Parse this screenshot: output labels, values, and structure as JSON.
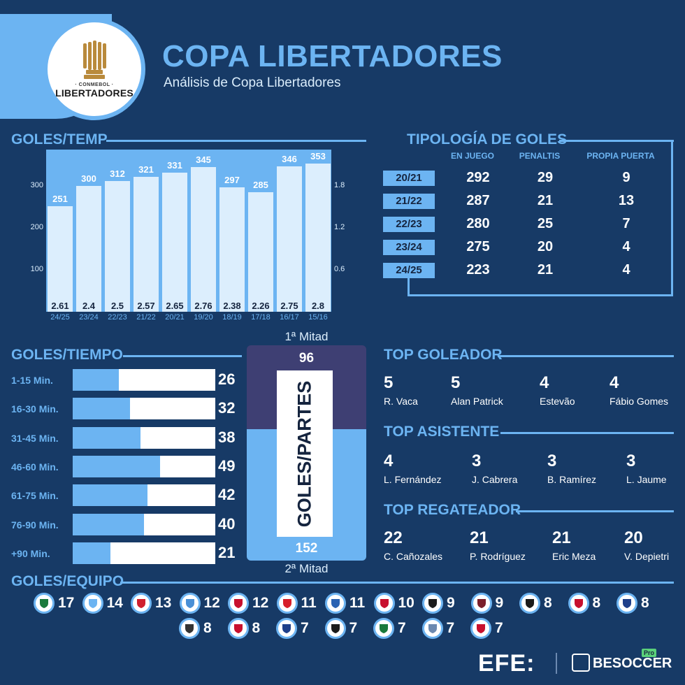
{
  "header": {
    "logo_small": "· CONMEBOL ·",
    "logo_big": "LIBERTADORES",
    "title": "COPA LIBERTADORES",
    "subtitle": "Análisis de Copa Libertadores"
  },
  "sections": {
    "goles_temp": "GOLES/TEMP",
    "tipologia": "TIPOLOGÍA DE GOLES",
    "goles_tiempo": "GOLES/TIEMPO",
    "top_goleador": "TOP GOLEADOR",
    "top_asistente": "TOP ASISTENTE",
    "top_regateador": "TOP REGATEADOR",
    "goles_equipo": "GOLES/EQUIPO"
  },
  "chart_data": {
    "type": "bar",
    "categories": [
      "24/25",
      "23/24",
      "22/23",
      "21/22",
      "20/21",
      "19/20",
      "18/19",
      "17/18",
      "16/17",
      "15/16"
    ],
    "series": [
      {
        "values": [
          251,
          300,
          312,
          321,
          331,
          345,
          297,
          285,
          346,
          353
        ]
      },
      {
        "values": [
          2.61,
          2.4,
          2.5,
          2.57,
          2.65,
          2.76,
          2.38,
          2.26,
          2.75,
          2.8
        ]
      }
    ],
    "ylim": [
      0,
      380
    ],
    "y_ticks": [
      "100",
      "200",
      "300"
    ],
    "y2_ticks": [
      "0.6",
      "1.2",
      "1.8"
    ],
    "y2lim": [
      0,
      2.28
    ]
  },
  "tipologia": {
    "headers": [
      "EN JUEGO",
      "PENALTIS",
      "PROPIA PUERTA"
    ],
    "rows": [
      {
        "season": "20/21",
        "values": [
          "292",
          "29",
          "9"
        ]
      },
      {
        "season": "21/22",
        "values": [
          "287",
          "21",
          "13"
        ]
      },
      {
        "season": "22/23",
        "values": [
          "280",
          "25",
          "7"
        ]
      },
      {
        "season": "23/24",
        "values": [
          "275",
          "20",
          "4"
        ]
      },
      {
        "season": "24/25",
        "values": [
          "223",
          "21",
          "4"
        ]
      }
    ]
  },
  "goles_tiempo": {
    "rows": [
      {
        "label": "1-15 Min.",
        "value": 26
      },
      {
        "label": "16-30 Min.",
        "value": 32
      },
      {
        "label": "31-45 Min.",
        "value": 38
      },
      {
        "label": "46-60 Min.",
        "value": 49
      },
      {
        "label": "61-75 Min.",
        "value": 42
      },
      {
        "label": "76-90 Min.",
        "value": 40
      },
      {
        "label": "+90 Min.",
        "value": 21
      }
    ]
  },
  "partes": {
    "first_label": "1ª Mitad",
    "first_value": "96",
    "second_label": "2ª Mitad",
    "second_value": "152",
    "center_label": "GOLES/PARTES"
  },
  "top_goleador": [
    {
      "value": "5",
      "name": "R. Vaca"
    },
    {
      "value": "5",
      "name": "Alan Patrick"
    },
    {
      "value": "4",
      "name": "Estevão"
    },
    {
      "value": "4",
      "name": "Fábio Gomes"
    }
  ],
  "top_asistente": [
    {
      "value": "4",
      "name": "L. Fernández"
    },
    {
      "value": "3",
      "name": "J. Cabrera"
    },
    {
      "value": "3",
      "name": "B. Ramírez"
    },
    {
      "value": "3",
      "name": "L. Jaume"
    }
  ],
  "top_regateador": [
    {
      "value": "22",
      "name": "C. Cañozales"
    },
    {
      "value": "21",
      "name": "P. Rodríguez"
    },
    {
      "value": "21",
      "name": "Eric Meza"
    },
    {
      "value": "20",
      "name": "V. Depietri"
    }
  ],
  "equipos": [
    {
      "value": "17",
      "color": "#1a7a3c",
      "icon": "palmeiras-crest-icon"
    },
    {
      "value": "14",
      "color": "#6cb4f2",
      "icon": "racing-crest-icon"
    },
    {
      "value": "13",
      "color": "#d0202e",
      "icon": "river-crest-icon"
    },
    {
      "value": "12",
      "color": "#4a90d6",
      "icon": "bolivar-crest-icon"
    },
    {
      "value": "12",
      "color": "#c8102e",
      "icon": "internacional-crest-icon"
    },
    {
      "value": "11",
      "color": "#d71f2b",
      "icon": "estudiantes-crest-icon"
    },
    {
      "value": "11",
      "color": "#2b63b3",
      "icon": "velez-crest-icon"
    },
    {
      "value": "10",
      "color": "#c8102e",
      "icon": "sao-paulo-crest-icon"
    },
    {
      "value": "9",
      "color": "#1b1b1b",
      "icon": "penarol-crest-icon"
    },
    {
      "value": "9",
      "color": "#7a1f2b",
      "icon": "san-lorenzo-crest-icon"
    },
    {
      "value": "8",
      "color": "#1b1b1b",
      "icon": "botafogo-crest-icon"
    },
    {
      "value": "8",
      "color": "#c8102e",
      "icon": "sao-paulo-alt-crest-icon"
    },
    {
      "value": "8",
      "color": "#1e3f8a",
      "icon": "ldu-crest-icon"
    },
    {
      "value": "8",
      "color": "#333333",
      "icon": "talleres-crest-icon"
    },
    {
      "value": "8",
      "color": "#c8102e",
      "icon": "universidad-crest-icon"
    },
    {
      "value": "7",
      "color": "#1e3f8a",
      "icon": "nacional-crest-icon"
    },
    {
      "value": "7",
      "color": "#1b1b1b",
      "icon": "libertad-crest-icon"
    },
    {
      "value": "7",
      "color": "#1a7a3c",
      "icon": "atletico-nacional-crest-icon"
    },
    {
      "value": "7",
      "color": "#6c89b0",
      "icon": "alianza-crest-icon"
    },
    {
      "value": "7",
      "color": "#c8102e",
      "icon": "cerro-crest-icon"
    }
  ],
  "footer": {
    "efe": "EFE:",
    "besoccer": "BESOCCER",
    "pro": "Pro"
  }
}
